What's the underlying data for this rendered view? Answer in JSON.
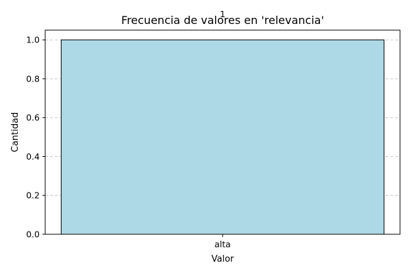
{
  "chart_data": {
    "type": "bar",
    "title": "Frecuencia de valores en 'relevancia'",
    "xlabel": "Valor",
    "ylabel": "Cantidad",
    "categories": [
      "alta"
    ],
    "values": [
      1
    ],
    "data_labels": [
      "1"
    ],
    "ylim": [
      0,
      1.05
    ],
    "yticks": [
      0.0,
      0.2,
      0.4,
      0.6,
      0.8,
      1.0
    ],
    "ytick_labels": [
      "0.0",
      "0.2",
      "0.4",
      "0.6",
      "0.8",
      "1.0"
    ],
    "grid": "y-dashed",
    "legend": "none",
    "colors": {
      "bar_fill": "#add8e6",
      "bar_edge": "#000000",
      "grid": "#c8c8c8"
    }
  }
}
